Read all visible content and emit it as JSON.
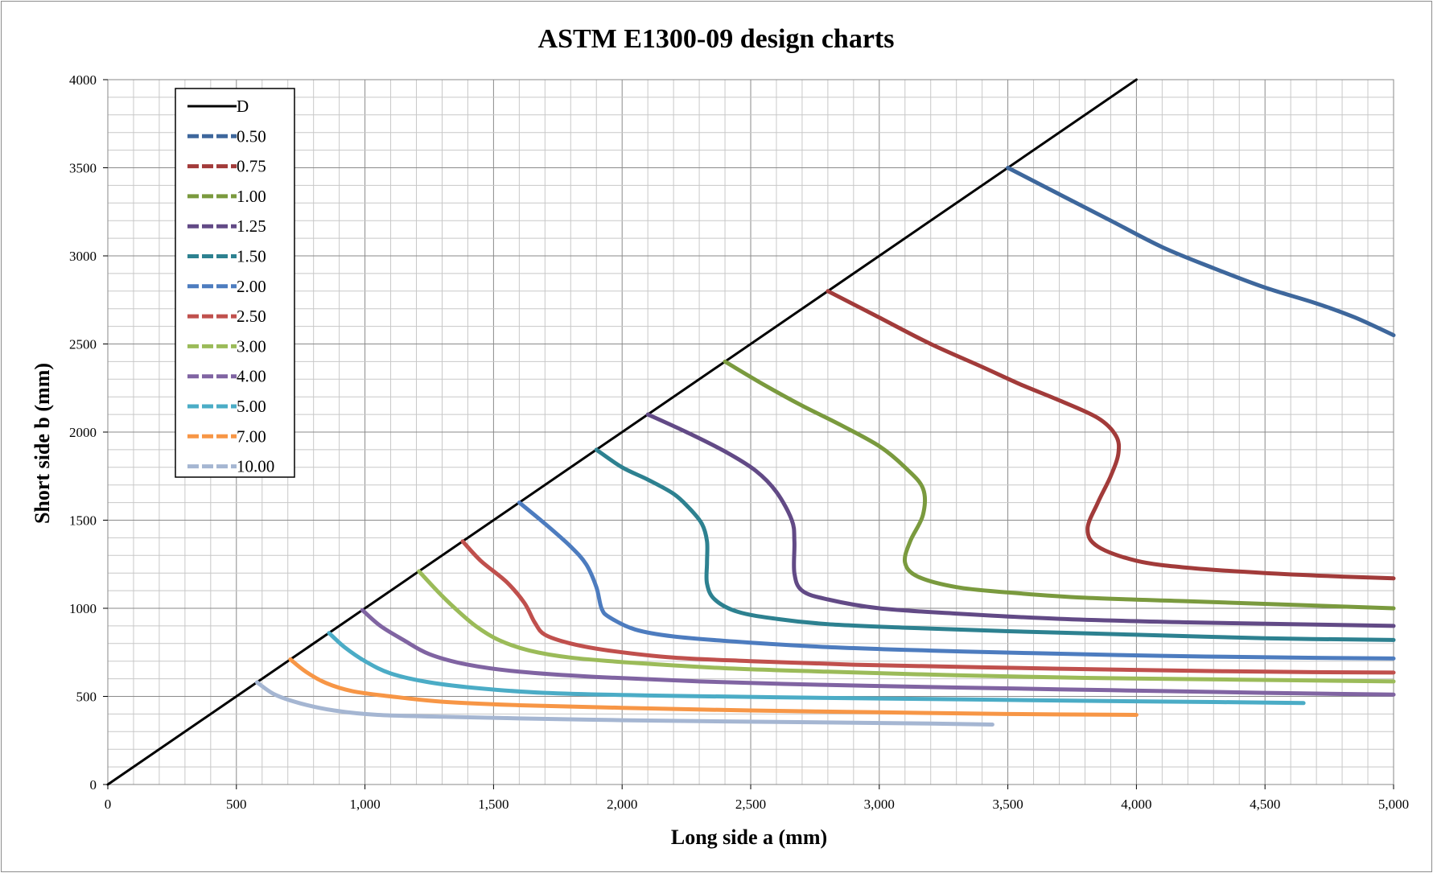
{
  "chart_data": {
    "type": "line",
    "title": "ASTM E1300-09 design charts",
    "xlabel": "Long side a (mm)",
    "ylabel": "Short side b (mm)",
    "xlim": [
      0,
      5000
    ],
    "ylim": [
      0,
      4000
    ],
    "x_ticks": [
      "0",
      "500",
      "1,000",
      "1,500",
      "2,000",
      "2,500",
      "3,000",
      "3,500",
      "4,000",
      "4,500",
      "5,000"
    ],
    "y_ticks": [
      "0",
      "500",
      "1000",
      "1500",
      "2000",
      "2500",
      "3000",
      "3500",
      "4000"
    ],
    "grid": true,
    "legend_position": "top-left",
    "series": [
      {
        "name": "D",
        "color": "#000000",
        "points": [
          [
            0,
            0
          ],
          [
            4000,
            4000
          ]
        ]
      },
      {
        "name": "0.50",
        "color": "#3e679c",
        "points": [
          [
            3500,
            3500
          ],
          [
            3700,
            3350
          ],
          [
            3900,
            3200
          ],
          [
            4100,
            3050
          ],
          [
            4300,
            2930
          ],
          [
            4500,
            2820
          ],
          [
            4700,
            2730
          ],
          [
            4850,
            2650
          ],
          [
            5000,
            2550
          ]
        ]
      },
      {
        "name": "0.75",
        "color": "#a23b3a",
        "points": [
          [
            2800,
            2800
          ],
          [
            3000,
            2650
          ],
          [
            3200,
            2500
          ],
          [
            3400,
            2370
          ],
          [
            3550,
            2270
          ],
          [
            3700,
            2180
          ],
          [
            3850,
            2080
          ],
          [
            3920,
            1980
          ],
          [
            3930,
            1880
          ],
          [
            3900,
            1750
          ],
          [
            3850,
            1600
          ],
          [
            3810,
            1450
          ],
          [
            3850,
            1350
          ],
          [
            4000,
            1270
          ],
          [
            4200,
            1230
          ],
          [
            4500,
            1200
          ],
          [
            4800,
            1180
          ],
          [
            5000,
            1170
          ]
        ]
      },
      {
        "name": "1.00",
        "color": "#7a9a3e",
        "points": [
          [
            2400,
            2400
          ],
          [
            2550,
            2270
          ],
          [
            2700,
            2150
          ],
          [
            2850,
            2040
          ],
          [
            3000,
            1920
          ],
          [
            3100,
            1800
          ],
          [
            3170,
            1680
          ],
          [
            3170,
            1530
          ],
          [
            3120,
            1380
          ],
          [
            3100,
            1260
          ],
          [
            3150,
            1180
          ],
          [
            3300,
            1120
          ],
          [
            3500,
            1090
          ],
          [
            3800,
            1060
          ],
          [
            4200,
            1040
          ],
          [
            4600,
            1020
          ],
          [
            5000,
            1000
          ]
        ]
      },
      {
        "name": "1.25",
        "color": "#624a86",
        "points": [
          [
            2100,
            2100
          ],
          [
            2250,
            2000
          ],
          [
            2400,
            1890
          ],
          [
            2520,
            1780
          ],
          [
            2600,
            1660
          ],
          [
            2660,
            1500
          ],
          [
            2670,
            1380
          ],
          [
            2670,
            1200
          ],
          [
            2700,
            1100
          ],
          [
            2800,
            1050
          ],
          [
            3000,
            1000
          ],
          [
            3300,
            970
          ],
          [
            3700,
            940
          ],
          [
            4200,
            920
          ],
          [
            4600,
            910
          ],
          [
            5000,
            900
          ]
        ]
      },
      {
        "name": "1.50",
        "color": "#2d8190",
        "points": [
          [
            1900,
            1900
          ],
          [
            2000,
            1800
          ],
          [
            2100,
            1730
          ],
          [
            2200,
            1650
          ],
          [
            2260,
            1570
          ],
          [
            2310,
            1480
          ],
          [
            2330,
            1380
          ],
          [
            2330,
            1260
          ],
          [
            2330,
            1140
          ],
          [
            2360,
            1050
          ],
          [
            2450,
            980
          ],
          [
            2600,
            940
          ],
          [
            2800,
            910
          ],
          [
            3100,
            890
          ],
          [
            3500,
            870
          ],
          [
            4000,
            850
          ],
          [
            4500,
            830
          ],
          [
            5000,
            820
          ]
        ]
      },
      {
        "name": "2.00",
        "color": "#4d7cbf",
        "points": [
          [
            1600,
            1600
          ],
          [
            1700,
            1480
          ],
          [
            1800,
            1350
          ],
          [
            1860,
            1250
          ],
          [
            1900,
            1120
          ],
          [
            1920,
            1000
          ],
          [
            1950,
            950
          ],
          [
            2050,
            880
          ],
          [
            2200,
            840
          ],
          [
            2450,
            810
          ],
          [
            2800,
            780
          ],
          [
            3200,
            760
          ],
          [
            3600,
            745
          ],
          [
            4100,
            730
          ],
          [
            4600,
            720
          ],
          [
            5000,
            715
          ]
        ]
      },
      {
        "name": "2.50",
        "color": "#c0504d",
        "points": [
          [
            1380,
            1380
          ],
          [
            1450,
            1270
          ],
          [
            1550,
            1150
          ],
          [
            1620,
            1030
          ],
          [
            1660,
            920
          ],
          [
            1700,
            850
          ],
          [
            1800,
            800
          ],
          [
            1950,
            760
          ],
          [
            2200,
            720
          ],
          [
            2500,
            700
          ],
          [
            2900,
            680
          ],
          [
            3400,
            665
          ],
          [
            4000,
            650
          ],
          [
            4500,
            640
          ],
          [
            5000,
            635
          ]
        ]
      },
      {
        "name": "3.00",
        "color": "#9bbb59",
        "points": [
          [
            1210,
            1210
          ],
          [
            1280,
            1100
          ],
          [
            1350,
            1000
          ],
          [
            1430,
            900
          ],
          [
            1520,
            820
          ],
          [
            1640,
            760
          ],
          [
            1800,
            720
          ],
          [
            2050,
            690
          ],
          [
            2400,
            660
          ],
          [
            2800,
            640
          ],
          [
            3300,
            620
          ],
          [
            3800,
            605
          ],
          [
            4400,
            595
          ],
          [
            5000,
            585
          ]
        ]
      },
      {
        "name": "4.00",
        "color": "#8064a2",
        "points": [
          [
            990,
            990
          ],
          [
            1060,
            900
          ],
          [
            1150,
            820
          ],
          [
            1250,
            740
          ],
          [
            1400,
            680
          ],
          [
            1600,
            640
          ],
          [
            1900,
            610
          ],
          [
            2300,
            585
          ],
          [
            2800,
            565
          ],
          [
            3300,
            550
          ],
          [
            3900,
            535
          ],
          [
            4500,
            520
          ],
          [
            5000,
            510
          ]
        ]
      },
      {
        "name": "5.00",
        "color": "#4bacc6",
        "points": [
          [
            860,
            860
          ],
          [
            920,
            780
          ],
          [
            1000,
            700
          ],
          [
            1100,
            630
          ],
          [
            1250,
            580
          ],
          [
            1450,
            545
          ],
          [
            1700,
            520
          ],
          [
            2100,
            505
          ],
          [
            2600,
            495
          ],
          [
            3200,
            485
          ],
          [
            3800,
            475
          ],
          [
            4300,
            468
          ],
          [
            4650,
            462
          ]
        ]
      },
      {
        "name": "7.00",
        "color": "#f79646",
        "points": [
          [
            710,
            710
          ],
          [
            770,
            640
          ],
          [
            850,
            575
          ],
          [
            950,
            530
          ],
          [
            1100,
            500
          ],
          [
            1300,
            470
          ],
          [
            1600,
            450
          ],
          [
            2000,
            435
          ],
          [
            2500,
            420
          ],
          [
            3000,
            410
          ],
          [
            3500,
            400
          ],
          [
            4000,
            395
          ]
        ]
      },
      {
        "name": "10.00",
        "color": "#a5b6d2",
        "points": [
          [
            580,
            580
          ],
          [
            650,
            510
          ],
          [
            750,
            460
          ],
          [
            880,
            420
          ],
          [
            1050,
            395
          ],
          [
            1300,
            385
          ],
          [
            1600,
            375
          ],
          [
            2000,
            365
          ],
          [
            2400,
            358
          ],
          [
            2800,
            352
          ],
          [
            3200,
            346
          ],
          [
            3440,
            340
          ]
        ]
      }
    ]
  }
}
